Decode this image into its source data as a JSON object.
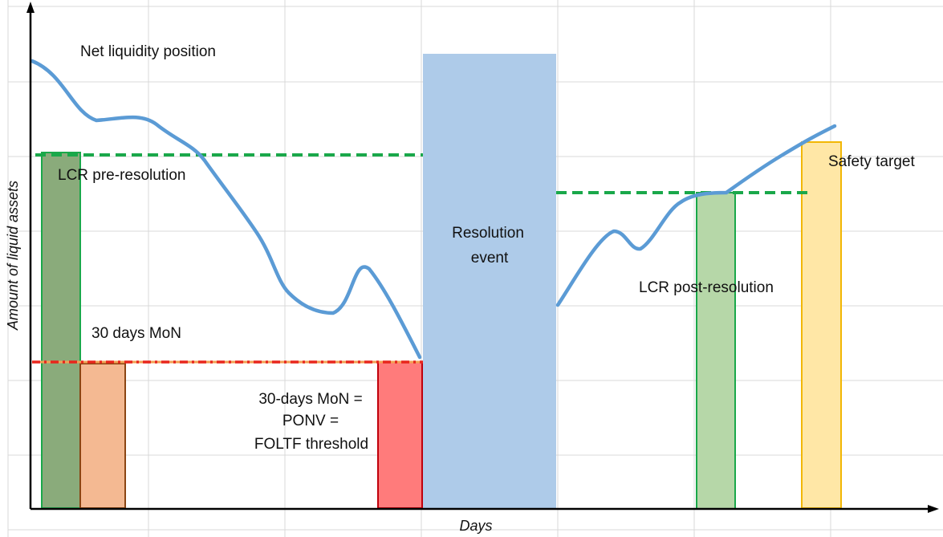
{
  "labels": {
    "net_liquidity_position": "Net liquidity position",
    "lcr_pre_resolution": "LCR pre-resolution",
    "thirty_days_mon": "30 days MoN",
    "threshold_line1": "30-days MoN =",
    "threshold_line2": "PONV =",
    "threshold_line3": "FOLTF threshold",
    "resolution_line1": "Resolution",
    "resolution_line2": "event",
    "lcr_post_resolution": "LCR post-resolution",
    "safety_target": "Safety target"
  },
  "axes": {
    "y_title": "Amount of liquid assets",
    "x_title": "Days"
  },
  "colors": {
    "grid": "#d9d9d9",
    "axis": "#000000",
    "liquidity_curve": "#5b9bd5",
    "lcr_line": "#1aa84a",
    "threshold_line_red": "#e8261c",
    "threshold_line_orange": "#f2a154",
    "lcr_pre_bar_fill": "#8aab7b",
    "lcr_pre_bar_stroke": "#1aa84a",
    "mon_bar_fill": "#f4b992",
    "mon_bar_stroke": "#8b4513",
    "threshold_bar_fill": "#ff7b7b",
    "threshold_bar_stroke": "#c0000b",
    "resolution_fill": "#aecbe9",
    "lcr_post_bar_fill": "#b6d7a8",
    "lcr_post_bar_stroke": "#1aa84a",
    "safety_bar_fill": "#ffe7a6",
    "safety_bar_stroke": "#f2b705"
  }
}
